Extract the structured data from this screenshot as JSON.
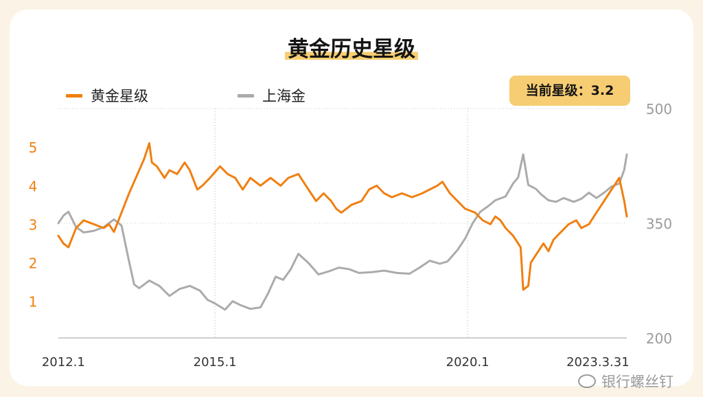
{
  "title": "黄金历史星级",
  "badge": {
    "label": "当前星级：",
    "value": "3.2"
  },
  "watermark": "银行螺丝钉",
  "colors": {
    "gold_star": "#f07f10",
    "shanghai_gold": "#ababab",
    "badge_bg": "#f6cd72",
    "background": "#fbf4e6"
  },
  "chart_data": {
    "type": "line",
    "title": "黄金历史星级",
    "x_ticks": [
      "2012.1",
      "2015.1",
      "2020.1",
      "2023.3.31"
    ],
    "x_range": [
      2012.0,
      2023.25
    ],
    "left_axis": {
      "ticks": [
        1,
        2,
        3,
        4,
        5
      ],
      "range": [
        0.05,
        6.0
      ]
    },
    "right_axis": {
      "ticks": [
        200,
        350,
        500
      ],
      "range": [
        200,
        500
      ]
    },
    "grid": {
      "vertical_dotted_at": [
        "2015.1",
        "2020.1"
      ],
      "horizontal_dotted_at_right": [
        350,
        500
      ]
    },
    "legend_position": "top-left",
    "series": [
      {
        "name": "黄金星级",
        "axis": "left",
        "points": [
          [
            2012.0,
            2.7
          ],
          [
            2012.1,
            2.5
          ],
          [
            2012.2,
            2.4
          ],
          [
            2012.35,
            2.9
          ],
          [
            2012.5,
            3.1
          ],
          [
            2012.7,
            3.0
          ],
          [
            2012.9,
            2.9
          ],
          [
            2013.0,
            3.0
          ],
          [
            2013.1,
            2.8
          ],
          [
            2013.25,
            3.3
          ],
          [
            2013.4,
            3.8
          ],
          [
            2013.5,
            4.1
          ],
          [
            2013.6,
            4.4
          ],
          [
            2013.7,
            4.7
          ],
          [
            2013.75,
            4.9
          ],
          [
            2013.8,
            5.1
          ],
          [
            2013.85,
            4.6
          ],
          [
            2013.95,
            4.5
          ],
          [
            2014.1,
            4.2
          ],
          [
            2014.2,
            4.4
          ],
          [
            2014.35,
            4.3
          ],
          [
            2014.5,
            4.6
          ],
          [
            2014.6,
            4.4
          ],
          [
            2014.75,
            3.9
          ],
          [
            2014.85,
            4.0
          ],
          [
            2015.0,
            4.2
          ],
          [
            2015.2,
            4.5
          ],
          [
            2015.35,
            4.3
          ],
          [
            2015.5,
            4.2
          ],
          [
            2015.65,
            3.9
          ],
          [
            2015.8,
            4.2
          ],
          [
            2016.0,
            4.0
          ],
          [
            2016.2,
            4.2
          ],
          [
            2016.4,
            4.0
          ],
          [
            2016.55,
            4.2
          ],
          [
            2016.75,
            4.3
          ],
          [
            2016.9,
            4.0
          ],
          [
            2017.0,
            3.8
          ],
          [
            2017.1,
            3.6
          ],
          [
            2017.25,
            3.8
          ],
          [
            2017.4,
            3.6
          ],
          [
            2017.5,
            3.4
          ],
          [
            2017.6,
            3.3
          ],
          [
            2017.8,
            3.5
          ],
          [
            2018.0,
            3.6
          ],
          [
            2018.15,
            3.9
          ],
          [
            2018.3,
            4.0
          ],
          [
            2018.45,
            3.8
          ],
          [
            2018.6,
            3.7
          ],
          [
            2018.8,
            3.8
          ],
          [
            2019.0,
            3.7
          ],
          [
            2019.2,
            3.8
          ],
          [
            2019.35,
            3.9
          ],
          [
            2019.5,
            4.0
          ],
          [
            2019.6,
            4.1
          ],
          [
            2019.75,
            3.8
          ],
          [
            2019.9,
            3.6
          ],
          [
            2020.05,
            3.4
          ],
          [
            2020.25,
            3.3
          ],
          [
            2020.4,
            3.1
          ],
          [
            2020.55,
            3.0
          ],
          [
            2020.65,
            3.2
          ],
          [
            2020.75,
            3.1
          ],
          [
            2020.85,
            2.9
          ],
          [
            2021.0,
            2.7
          ],
          [
            2021.1,
            2.5
          ],
          [
            2021.15,
            2.4
          ],
          [
            2021.2,
            1.3
          ],
          [
            2021.3,
            1.4
          ],
          [
            2021.35,
            2.0
          ],
          [
            2021.45,
            2.2
          ],
          [
            2021.6,
            2.5
          ],
          [
            2021.7,
            2.3
          ],
          [
            2021.8,
            2.6
          ],
          [
            2021.95,
            2.8
          ],
          [
            2022.1,
            3.0
          ],
          [
            2022.25,
            3.1
          ],
          [
            2022.35,
            2.9
          ],
          [
            2022.5,
            3.0
          ],
          [
            2022.65,
            3.3
          ],
          [
            2022.8,
            3.6
          ],
          [
            2022.9,
            3.8
          ],
          [
            2023.0,
            4.0
          ],
          [
            2023.1,
            4.2
          ],
          [
            2023.15,
            3.9
          ],
          [
            2023.2,
            3.6
          ],
          [
            2023.25,
            3.2
          ]
        ]
      },
      {
        "name": "上海金",
        "axis": "right",
        "points": [
          [
            2012.0,
            350
          ],
          [
            2012.1,
            360
          ],
          [
            2012.2,
            365
          ],
          [
            2012.35,
            345
          ],
          [
            2012.5,
            338
          ],
          [
            2012.7,
            340
          ],
          [
            2012.9,
            345
          ],
          [
            2013.0,
            350
          ],
          [
            2013.1,
            355
          ],
          [
            2013.25,
            347
          ],
          [
            2013.4,
            300
          ],
          [
            2013.5,
            270
          ],
          [
            2013.6,
            265
          ],
          [
            2013.7,
            270
          ],
          [
            2013.8,
            275
          ],
          [
            2014.0,
            268
          ],
          [
            2014.2,
            255
          ],
          [
            2014.4,
            264
          ],
          [
            2014.6,
            268
          ],
          [
            2014.8,
            262
          ],
          [
            2014.95,
            250
          ],
          [
            2015.1,
            245
          ],
          [
            2015.3,
            237
          ],
          [
            2015.45,
            248
          ],
          [
            2015.6,
            243
          ],
          [
            2015.8,
            238
          ],
          [
            2016.0,
            240
          ],
          [
            2016.15,
            258
          ],
          [
            2016.3,
            280
          ],
          [
            2016.45,
            276
          ],
          [
            2016.6,
            290
          ],
          [
            2016.75,
            310
          ],
          [
            2016.95,
            298
          ],
          [
            2017.15,
            283
          ],
          [
            2017.35,
            287
          ],
          [
            2017.55,
            292
          ],
          [
            2017.75,
            290
          ],
          [
            2017.95,
            285
          ],
          [
            2018.2,
            286
          ],
          [
            2018.45,
            288
          ],
          [
            2018.7,
            285
          ],
          [
            2018.95,
            284
          ],
          [
            2019.15,
            292
          ],
          [
            2019.35,
            301
          ],
          [
            2019.55,
            297
          ],
          [
            2019.7,
            300
          ],
          [
            2019.9,
            315
          ],
          [
            2020.05,
            330
          ],
          [
            2020.2,
            350
          ],
          [
            2020.35,
            365
          ],
          [
            2020.5,
            372
          ],
          [
            2020.65,
            380
          ],
          [
            2020.85,
            385
          ],
          [
            2021.0,
            402
          ],
          [
            2021.1,
            410
          ],
          [
            2021.2,
            440
          ],
          [
            2021.3,
            400
          ],
          [
            2021.45,
            395
          ],
          [
            2021.55,
            388
          ],
          [
            2021.7,
            380
          ],
          [
            2021.85,
            378
          ],
          [
            2022.0,
            383
          ],
          [
            2022.2,
            378
          ],
          [
            2022.35,
            382
          ],
          [
            2022.5,
            390
          ],
          [
            2022.65,
            383
          ],
          [
            2022.8,
            390
          ],
          [
            2022.95,
            398
          ],
          [
            2023.1,
            402
          ],
          [
            2023.2,
            420
          ],
          [
            2023.25,
            440
          ]
        ]
      }
    ]
  }
}
